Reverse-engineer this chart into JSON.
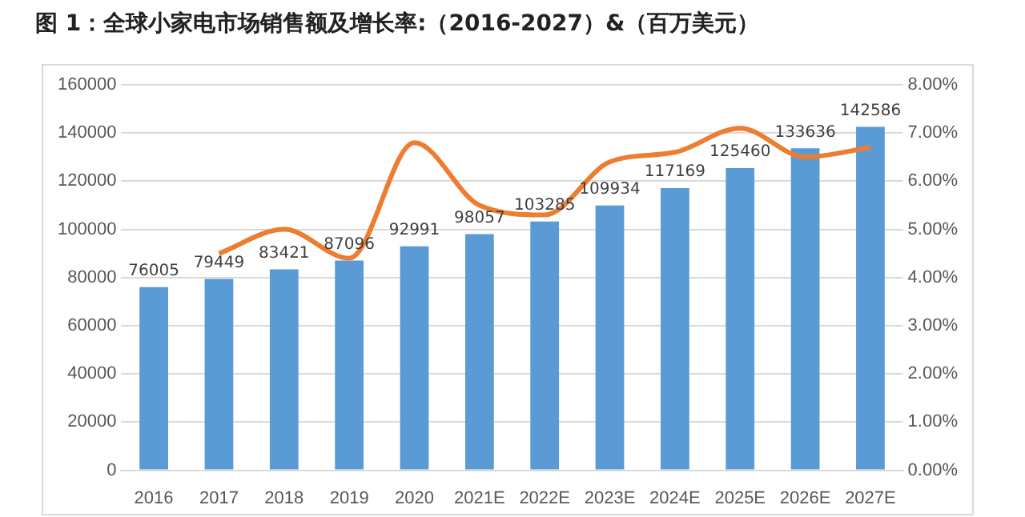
{
  "chart_data": {
    "type": "bar",
    "title": "图 1：全球小家电市场销售额及增长率:（2016-2027）&（百万美元）",
    "categories": [
      "2016",
      "2017",
      "2018",
      "2019",
      "2020",
      "2021E",
      "2022E",
      "2023E",
      "2024E",
      "2025E",
      "2026E",
      "2027E"
    ],
    "series": [
      {
        "color": "#5b9bd5",
        "values": [
          76005,
          79449,
          83421,
          87096,
          92991,
          98057,
          103285,
          109934,
          117169,
          125460,
          133636,
          142586
        ],
        "value_labels": [
          "76005",
          "79449",
          "83421",
          "87096",
          "92991",
          "98057",
          "103285",
          "109934",
          "117169",
          "125460",
          "133636",
          "142586"
        ]
      },
      {
        "type": "line",
        "axis": "y2",
        "color": "#ed7d31",
        "values": [
          null,
          4.5,
          5.0,
          4.4,
          6.8,
          5.5,
          5.3,
          6.4,
          6.6,
          7.1,
          6.5,
          6.7
        ]
      }
    ],
    "ylim": [
      0,
      160000
    ],
    "yticks": [
      0,
      20000,
      40000,
      60000,
      80000,
      100000,
      120000,
      140000,
      160000
    ],
    "y2lim": [
      0,
      8
    ],
    "y2ticks": [
      {
        "value": 0,
        "label": "0.00%"
      },
      {
        "value": 1,
        "label": "1.00%"
      },
      {
        "value": 2,
        "label": "2.00%"
      },
      {
        "value": 3,
        "label": "3.00%"
      },
      {
        "value": 4,
        "label": "4.00%"
      },
      {
        "value": 5,
        "label": "5.00%"
      },
      {
        "value": 6,
        "label": "6.00%"
      },
      {
        "value": 7,
        "label": "7.00%"
      },
      {
        "value": 8,
        "label": "8.00%"
      }
    ],
    "grid": "y",
    "legend": false,
    "marker": "none",
    "line_style": "solid"
  }
}
